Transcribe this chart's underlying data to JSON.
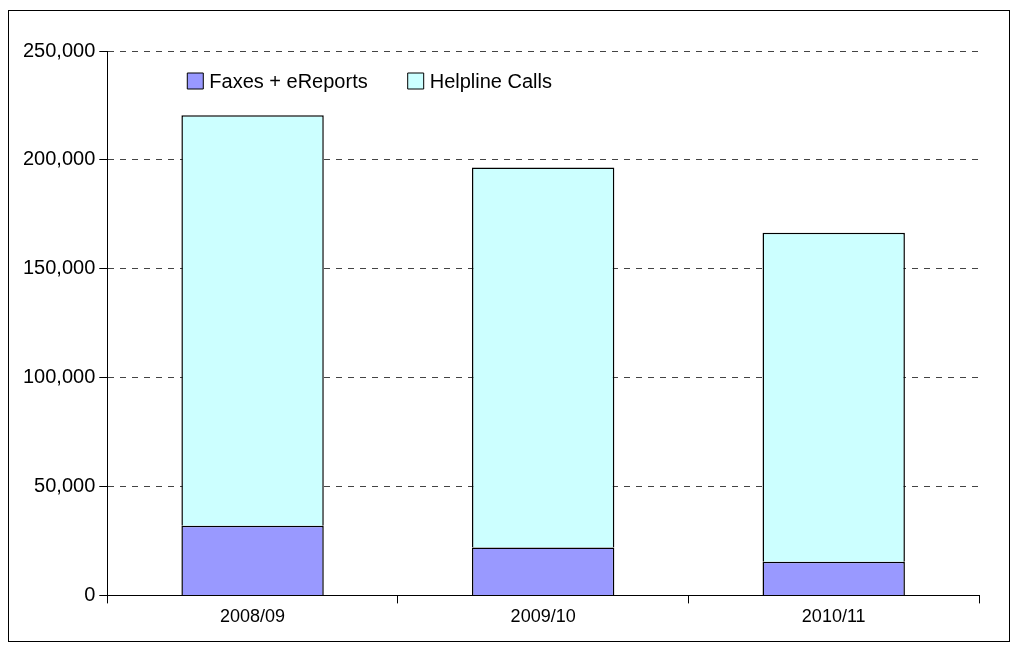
{
  "chart_data": {
    "type": "bar",
    "stacked": true,
    "categories": [
      "2008/09",
      "2009/10",
      "2010/11"
    ],
    "series": [
      {
        "name": "Faxes + eReports",
        "color": "#9999ff",
        "values": [
          32000,
          22000,
          15500
        ]
      },
      {
        "name": "Helpline Calls",
        "color": "#ccffff",
        "values": [
          188500,
          174500,
          151000
        ]
      }
    ],
    "ylim": [
      0,
      250000
    ],
    "yticks": [
      {
        "value": 0,
        "label": "0"
      },
      {
        "value": 50000,
        "label": "50,000"
      },
      {
        "value": 100000,
        "label": "100,000"
      },
      {
        "value": 150000,
        "label": "150,000"
      },
      {
        "value": 200000,
        "label": "200,000"
      },
      {
        "value": 250000,
        "label": "250,000"
      }
    ],
    "grid": "y",
    "legend": "top left"
  }
}
